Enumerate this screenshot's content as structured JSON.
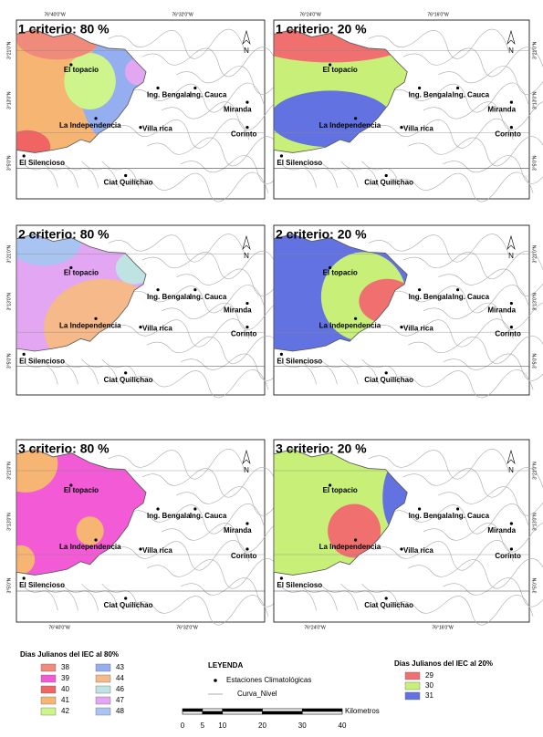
{
  "panels": [
    {
      "title": "1 criterio: 80 %"
    },
    {
      "title": "1 criterio: 20 %"
    },
    {
      "title": "2 criterio: 80 %"
    },
    {
      "title": "2 criterio: 20 %"
    },
    {
      "title": "3 criterio: 80 %"
    },
    {
      "title": "3 criterio: 20 %"
    }
  ],
  "north": "N",
  "longitude": [
    "76°40'0\"W",
    "76°32'0\"W",
    "76°24'0\"W",
    "76°16'0\"W"
  ],
  "latitude": [
    "3°21'0\"N",
    "3°13'0\"N",
    "3°5'0\"N"
  ],
  "places": [
    "El topacio",
    "Ing. Bengala",
    "Ing. Cauca",
    "Miranda",
    "La Independencia",
    "Villa rica",
    "Corinto",
    "El Silencioso",
    "Ciat Quilichao"
  ],
  "legend_80": {
    "title": "Dias Julianos del IEC al 80%",
    "items": [
      {
        "label": "38",
        "color": "#f08a7a"
      },
      {
        "label": "39",
        "color": "#f25ad6"
      },
      {
        "label": "40",
        "color": "#f06464"
      },
      {
        "label": "41",
        "color": "#f7b574"
      },
      {
        "label": "42",
        "color": "#cdf58c"
      },
      {
        "label": "43",
        "color": "#95aef0"
      },
      {
        "label": "44",
        "color": "#f5b98a"
      },
      {
        "label": "46",
        "color": "#bfe3e3"
      },
      {
        "label": "47",
        "color": "#e3a6f2"
      },
      {
        "label": "48",
        "color": "#aac4f2"
      }
    ]
  },
  "legend": {
    "title": "LEYENDA",
    "stations": "Estaciones Climatológicas",
    "contours": "Curva_Nivel"
  },
  "legend_20": {
    "title": "Dias Julianos del IEC al 20%",
    "items": [
      {
        "label": "29",
        "color": "#f07070"
      },
      {
        "label": "30",
        "color": "#c8f078"
      },
      {
        "label": "31",
        "color": "#6272e0"
      }
    ]
  },
  "scale_bar": {
    "unit": "Kilometros",
    "ticks": [
      0,
      5,
      10,
      20,
      30,
      40
    ],
    "xlim": [
      0,
      40
    ]
  }
}
